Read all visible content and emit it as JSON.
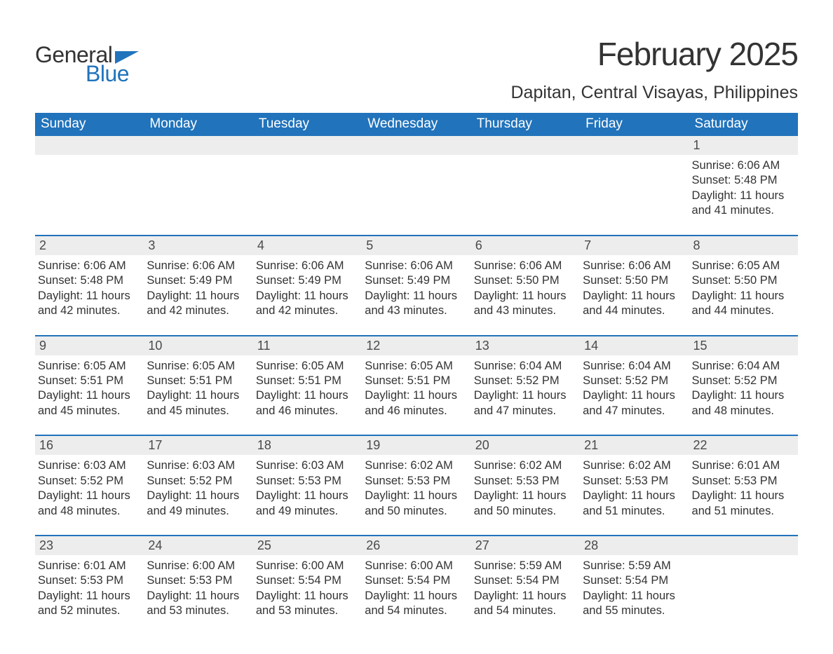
{
  "brand": {
    "word1": "General",
    "word2": "Blue"
  },
  "title": "February 2025",
  "location": "Dapitan, Central Visayas, Philippines",
  "colors": {
    "accent": "#2173bb",
    "header_text": "#ffffff",
    "daynum_bg": "#ededed",
    "body_text": "#333333",
    "page_bg": "#ffffff"
  },
  "calendar": {
    "type": "table",
    "columns": [
      "Sunday",
      "Monday",
      "Tuesday",
      "Wednesday",
      "Thursday",
      "Friday",
      "Saturday"
    ],
    "weeks": [
      [
        null,
        null,
        null,
        null,
        null,
        null,
        {
          "day": "1",
          "sunrise": "6:06 AM",
          "sunset": "5:48 PM",
          "daylight": "11 hours and 41 minutes."
        }
      ],
      [
        {
          "day": "2",
          "sunrise": "6:06 AM",
          "sunset": "5:48 PM",
          "daylight": "11 hours and 42 minutes."
        },
        {
          "day": "3",
          "sunrise": "6:06 AM",
          "sunset": "5:49 PM",
          "daylight": "11 hours and 42 minutes."
        },
        {
          "day": "4",
          "sunrise": "6:06 AM",
          "sunset": "5:49 PM",
          "daylight": "11 hours and 42 minutes."
        },
        {
          "day": "5",
          "sunrise": "6:06 AM",
          "sunset": "5:49 PM",
          "daylight": "11 hours and 43 minutes."
        },
        {
          "day": "6",
          "sunrise": "6:06 AM",
          "sunset": "5:50 PM",
          "daylight": "11 hours and 43 minutes."
        },
        {
          "day": "7",
          "sunrise": "6:06 AM",
          "sunset": "5:50 PM",
          "daylight": "11 hours and 44 minutes."
        },
        {
          "day": "8",
          "sunrise": "6:05 AM",
          "sunset": "5:50 PM",
          "daylight": "11 hours and 44 minutes."
        }
      ],
      [
        {
          "day": "9",
          "sunrise": "6:05 AM",
          "sunset": "5:51 PM",
          "daylight": "11 hours and 45 minutes."
        },
        {
          "day": "10",
          "sunrise": "6:05 AM",
          "sunset": "5:51 PM",
          "daylight": "11 hours and 45 minutes."
        },
        {
          "day": "11",
          "sunrise": "6:05 AM",
          "sunset": "5:51 PM",
          "daylight": "11 hours and 46 minutes."
        },
        {
          "day": "12",
          "sunrise": "6:05 AM",
          "sunset": "5:51 PM",
          "daylight": "11 hours and 46 minutes."
        },
        {
          "day": "13",
          "sunrise": "6:04 AM",
          "sunset": "5:52 PM",
          "daylight": "11 hours and 47 minutes."
        },
        {
          "day": "14",
          "sunrise": "6:04 AM",
          "sunset": "5:52 PM",
          "daylight": "11 hours and 47 minutes."
        },
        {
          "day": "15",
          "sunrise": "6:04 AM",
          "sunset": "5:52 PM",
          "daylight": "11 hours and 48 minutes."
        }
      ],
      [
        {
          "day": "16",
          "sunrise": "6:03 AM",
          "sunset": "5:52 PM",
          "daylight": "11 hours and 48 minutes."
        },
        {
          "day": "17",
          "sunrise": "6:03 AM",
          "sunset": "5:52 PM",
          "daylight": "11 hours and 49 minutes."
        },
        {
          "day": "18",
          "sunrise": "6:03 AM",
          "sunset": "5:53 PM",
          "daylight": "11 hours and 49 minutes."
        },
        {
          "day": "19",
          "sunrise": "6:02 AM",
          "sunset": "5:53 PM",
          "daylight": "11 hours and 50 minutes."
        },
        {
          "day": "20",
          "sunrise": "6:02 AM",
          "sunset": "5:53 PM",
          "daylight": "11 hours and 50 minutes."
        },
        {
          "day": "21",
          "sunrise": "6:02 AM",
          "sunset": "5:53 PM",
          "daylight": "11 hours and 51 minutes."
        },
        {
          "day": "22",
          "sunrise": "6:01 AM",
          "sunset": "5:53 PM",
          "daylight": "11 hours and 51 minutes."
        }
      ],
      [
        {
          "day": "23",
          "sunrise": "6:01 AM",
          "sunset": "5:53 PM",
          "daylight": "11 hours and 52 minutes."
        },
        {
          "day": "24",
          "sunrise": "6:00 AM",
          "sunset": "5:53 PM",
          "daylight": "11 hours and 53 minutes."
        },
        {
          "day": "25",
          "sunrise": "6:00 AM",
          "sunset": "5:54 PM",
          "daylight": "11 hours and 53 minutes."
        },
        {
          "day": "26",
          "sunrise": "6:00 AM",
          "sunset": "5:54 PM",
          "daylight": "11 hours and 54 minutes."
        },
        {
          "day": "27",
          "sunrise": "5:59 AM",
          "sunset": "5:54 PM",
          "daylight": "11 hours and 54 minutes."
        },
        {
          "day": "28",
          "sunrise": "5:59 AM",
          "sunset": "5:54 PM",
          "daylight": "11 hours and 55 minutes."
        },
        null
      ]
    ],
    "labels": {
      "sunrise": "Sunrise:",
      "sunset": "Sunset:",
      "daylight": "Daylight:"
    },
    "fonts": {
      "title_pt": 46,
      "location_pt": 25,
      "header_pt": 19,
      "daynum_pt": 18,
      "detail_pt": 16.5
    }
  }
}
